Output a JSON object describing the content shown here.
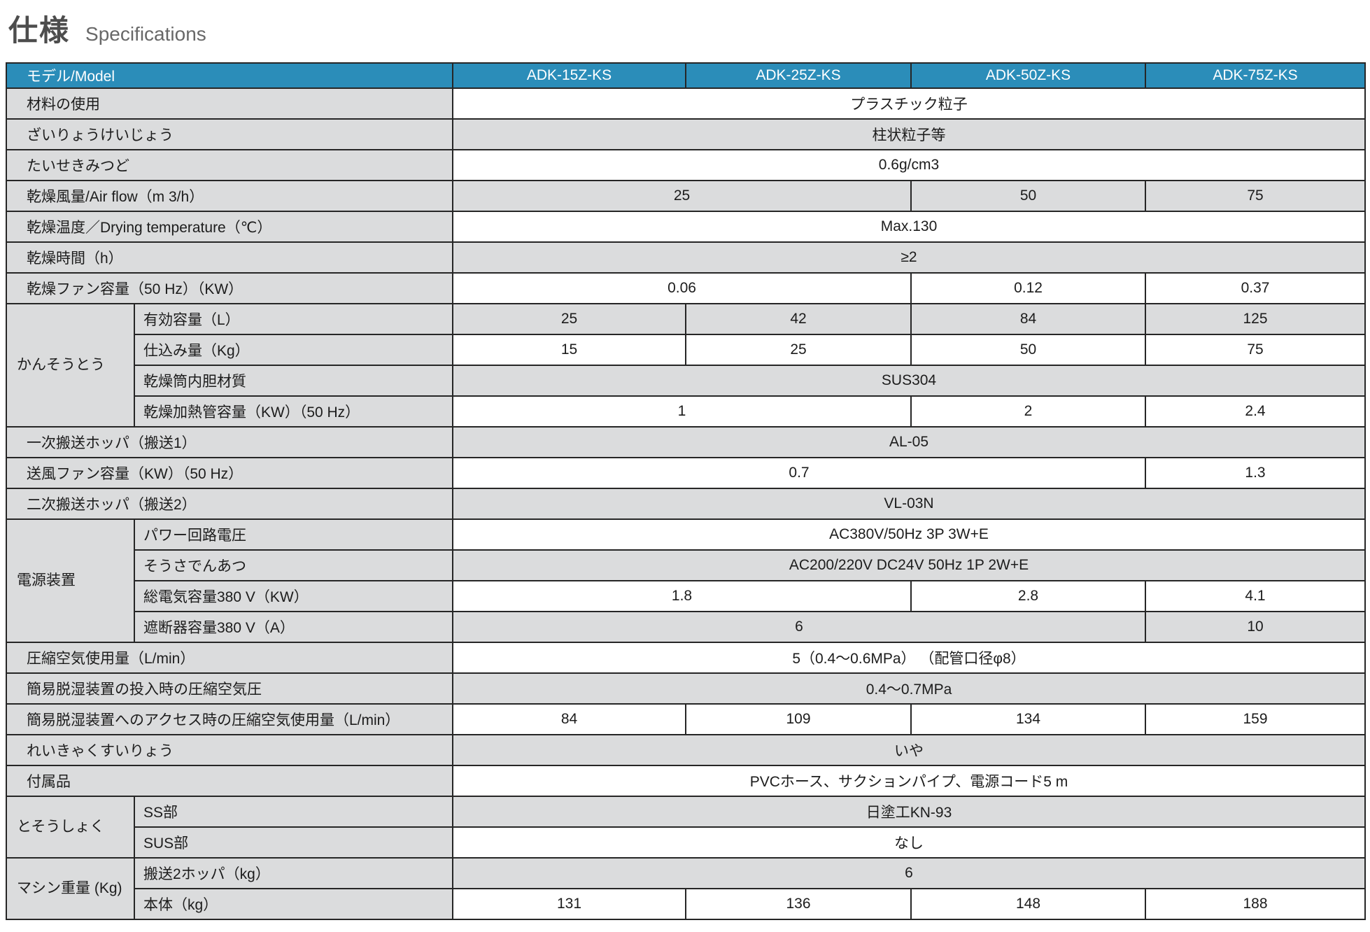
{
  "page": {
    "title_jp": "仕様",
    "title_en": "Specifications"
  },
  "colors": {
    "header_bg": "#2b8db9",
    "header_text": "#ffffff",
    "label_bg": "#dbdcdd",
    "alt_row_bg": "#dbdcdd",
    "border": "#262626"
  },
  "table": {
    "header": {
      "label": "モデル/Model",
      "models": [
        "ADK-15Z-KS",
        "ADK-25Z-KS",
        "ADK-50Z-KS",
        "ADK-75Z-KS"
      ]
    },
    "rows": [
      {
        "label": "材料の使用",
        "cells": [
          {
            "t": "プラスチック粒子",
            "s": 4
          }
        ]
      },
      {
        "label": "ざいりょうけいじょう",
        "cells": [
          {
            "t": "柱状粒子等",
            "s": 4
          }
        ]
      },
      {
        "label": "たいせきみつど",
        "cells": [
          {
            "t": "0.6g/cm3",
            "s": 4
          }
        ]
      },
      {
        "label": "乾燥風量/Air flow（m 3/h）",
        "cells": [
          {
            "t": "25",
            "s": 2
          },
          {
            "t": "50",
            "s": 1
          },
          {
            "t": "75",
            "s": 1
          }
        ]
      },
      {
        "label": "乾燥温度／Drying temperature（℃）",
        "cells": [
          {
            "t": "Max.130",
            "s": 4
          }
        ]
      },
      {
        "label": "乾燥時間（h）",
        "cells": [
          {
            "t": "≥2",
            "s": 4
          }
        ]
      },
      {
        "label": "乾燥ファン容量（50 Hz）（KW）",
        "cells": [
          {
            "t": "0.06",
            "s": 2
          },
          {
            "t": "0.12",
            "s": 1
          },
          {
            "t": "0.37",
            "s": 1
          }
        ]
      },
      {
        "group": {
          "text": "かんそうとう",
          "rows": 4
        },
        "sub": true,
        "label": "有効容量（L）",
        "cells": [
          {
            "t": "25",
            "s": 1
          },
          {
            "t": "42",
            "s": 1
          },
          {
            "t": "84",
            "s": 1
          },
          {
            "t": "125",
            "s": 1
          }
        ]
      },
      {
        "sub": true,
        "label": "仕込み量（Kg）",
        "cells": [
          {
            "t": "15",
            "s": 1
          },
          {
            "t": "25",
            "s": 1
          },
          {
            "t": "50",
            "s": 1
          },
          {
            "t": "75",
            "s": 1
          }
        ]
      },
      {
        "sub": true,
        "label": "乾燥筒内胆材質",
        "cells": [
          {
            "t": "SUS304",
            "s": 4
          }
        ]
      },
      {
        "sub": true,
        "label": "乾燥加熱管容量（KW）（50 Hz）",
        "cells": [
          {
            "t": "1",
            "s": 2
          },
          {
            "t": "2",
            "s": 1
          },
          {
            "t": "2.4",
            "s": 1
          }
        ]
      },
      {
        "label": "一次搬送ホッパ（搬送1）",
        "cells": [
          {
            "t": "AL-05",
            "s": 4
          }
        ]
      },
      {
        "label": "送風ファン容量（KW）（50 Hz）",
        "cells": [
          {
            "t": "0.7",
            "s": 3
          },
          {
            "t": "1.3",
            "s": 1
          }
        ]
      },
      {
        "label": "二次搬送ホッパ（搬送2）",
        "cells": [
          {
            "t": "VL-03N",
            "s": 4
          }
        ]
      },
      {
        "group": {
          "text": "電源装置",
          "rows": 4
        },
        "sub": true,
        "label": "パワー回路電圧",
        "cells": [
          {
            "t": "AC380V/50Hz 3P 3W+E",
            "s": 4
          }
        ]
      },
      {
        "sub": true,
        "label": "そうさでんあつ",
        "cells": [
          {
            "t": "AC200/220V DC24V 50Hz 1P 2W+E",
            "s": 4
          }
        ]
      },
      {
        "sub": true,
        "label": "総電気容量380 V（KW）",
        "cells": [
          {
            "t": "1.8",
            "s": 2
          },
          {
            "t": "2.8",
            "s": 1
          },
          {
            "t": "4.1",
            "s": 1
          }
        ]
      },
      {
        "sub": true,
        "label": "遮断器容量380 V（A）",
        "cells": [
          {
            "t": "6",
            "s": 3
          },
          {
            "t": "10",
            "s": 1
          }
        ]
      },
      {
        "label": "圧縮空気使用量（L/min）",
        "cells": [
          {
            "t": "5（0.4～0.6MPa） （配管口径φ8）",
            "s": 4
          }
        ]
      },
      {
        "label": "簡易脱湿装置の投入時の圧縮空気圧",
        "cells": [
          {
            "t": "0.4～0.7MPa",
            "s": 4
          }
        ]
      },
      {
        "label": "簡易脱湿装置へのアクセス時の圧縮空気使用量（L/min）",
        "cells": [
          {
            "t": "84",
            "s": 1
          },
          {
            "t": "109",
            "s": 1
          },
          {
            "t": "134",
            "s": 1
          },
          {
            "t": "159",
            "s": 1
          }
        ]
      },
      {
        "label": "れいきゃくすいりょう",
        "cells": [
          {
            "t": "いや",
            "s": 4
          }
        ]
      },
      {
        "label": "付属品",
        "cells": [
          {
            "t": "PVCホース、サクションパイプ、電源コード5 m",
            "s": 4
          }
        ]
      },
      {
        "group": {
          "text": "とそうしょく",
          "rows": 2
        },
        "sub": true,
        "label": "SS部",
        "cells": [
          {
            "t": "日塗工KN-93",
            "s": 4
          }
        ]
      },
      {
        "sub": true,
        "label": "SUS部",
        "cells": [
          {
            "t": "なし",
            "s": 4
          }
        ]
      },
      {
        "group": {
          "text": "マシン重量 (Kg)",
          "rows": 2
        },
        "sub": true,
        "label": "搬送2ホッパ（kg）",
        "cells": [
          {
            "t": "6",
            "s": 4
          }
        ]
      },
      {
        "sub": true,
        "label": "本体（kg）",
        "cells": [
          {
            "t": "131",
            "s": 1
          },
          {
            "t": "136",
            "s": 1
          },
          {
            "t": "148",
            "s": 1
          },
          {
            "t": "188",
            "s": 1
          }
        ]
      }
    ]
  }
}
